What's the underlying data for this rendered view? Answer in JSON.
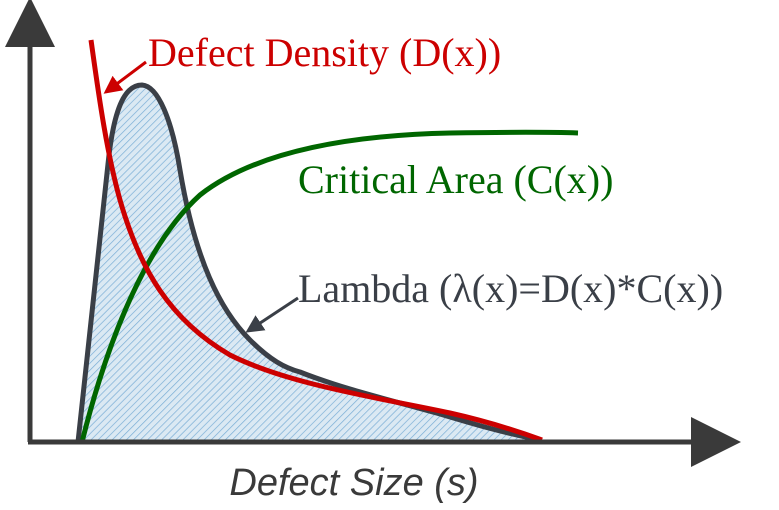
{
  "diagram": {
    "x_axis_label": "Defect Size (s)",
    "curves": {
      "defect_density": {
        "label": "Defect Density (D(x))",
        "color": "#cc0000"
      },
      "critical_area": {
        "label": "Critical Area (C(x))",
        "color": "#006600"
      },
      "lambda": {
        "label": "Lambda (λ(x)=D(x)*C(x))",
        "color": "#3a3f47",
        "fill_color": "#dbe9f3",
        "hatch_color": "#7aaed6"
      }
    },
    "axis_color": "#3a3a3a"
  }
}
